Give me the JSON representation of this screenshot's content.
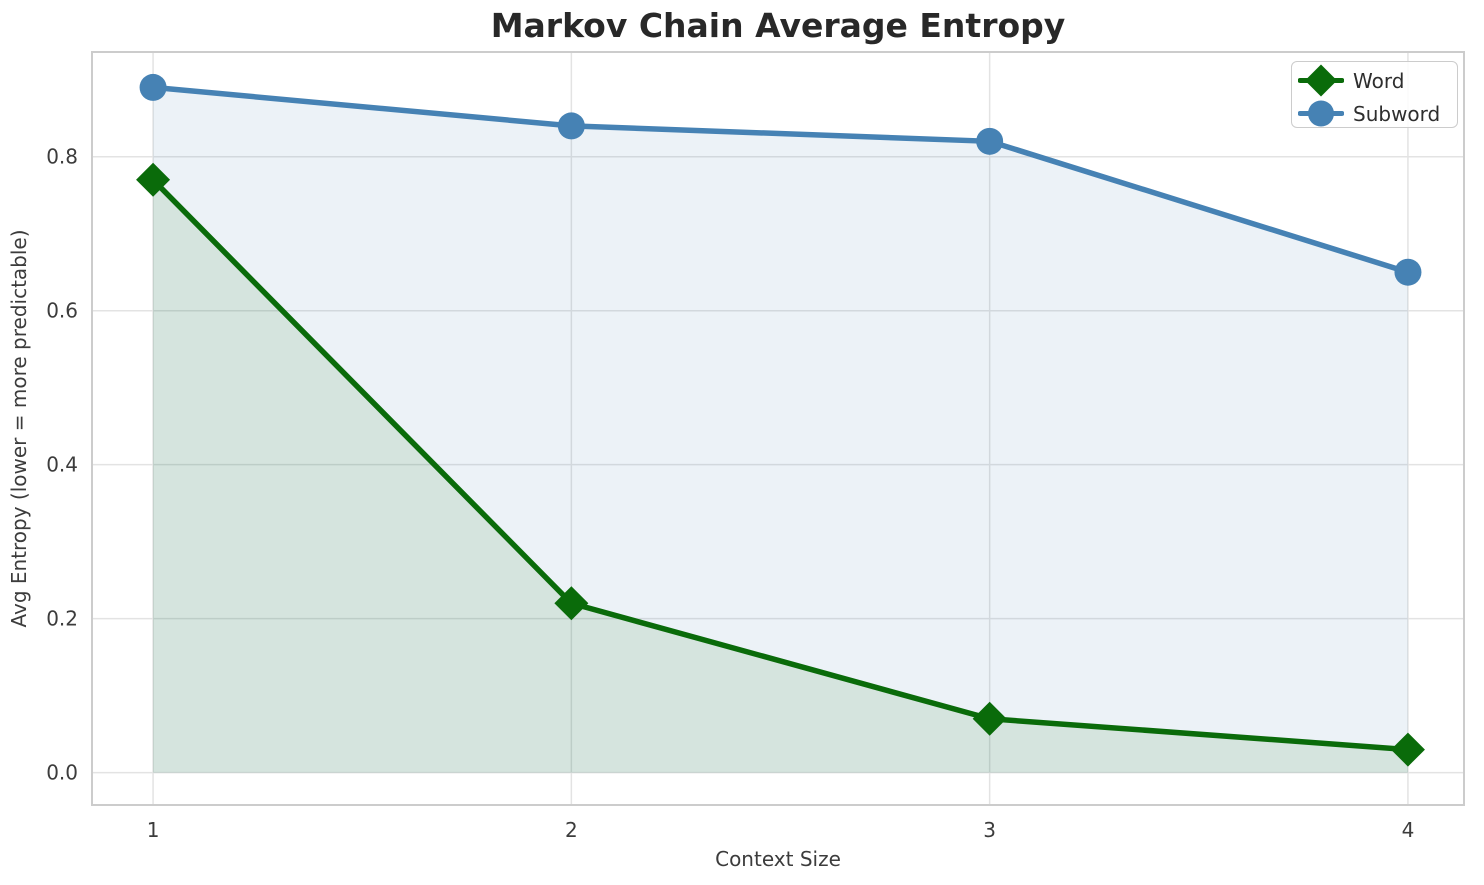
{
  "title": "Markov Chain Average Entropy",
  "chart_data": {
    "type": "line",
    "x": [
      1,
      2,
      3,
      4
    ],
    "series": [
      {
        "name": "Word",
        "values": [
          0.77,
          0.22,
          0.07,
          0.03
        ],
        "color": "#0a6b0a",
        "marker": "diamond",
        "area_fill": true
      },
      {
        "name": "Subword",
        "values": [
          0.89,
          0.84,
          0.82,
          0.65
        ],
        "color": "#4682B4",
        "marker": "circle",
        "area_fill": true
      }
    ],
    "xlabel": "Context Size",
    "ylabel": "Avg Entropy (lower = more predictable)",
    "xtick_values": [
      1,
      2,
      3,
      4
    ],
    "xtick_labels": [
      "1",
      "2",
      "3",
      "4"
    ],
    "ytick_values": [
      0.0,
      0.2,
      0.4,
      0.6,
      0.8
    ],
    "ytick_labels": [
      "0.0",
      "0.2",
      "0.4",
      "0.6",
      "0.8"
    ],
    "xlim": [
      0.854,
      4.134
    ],
    "ylim": [
      -0.042,
      0.936
    ],
    "grid": true,
    "legend_position": "upper right",
    "fill_opacity": 0.1
  },
  "style_colors": {
    "grid": "#e3e3e3",
    "spine": "#cccccc",
    "tick_text": "#3c3c3c",
    "title_text": "#282828"
  }
}
